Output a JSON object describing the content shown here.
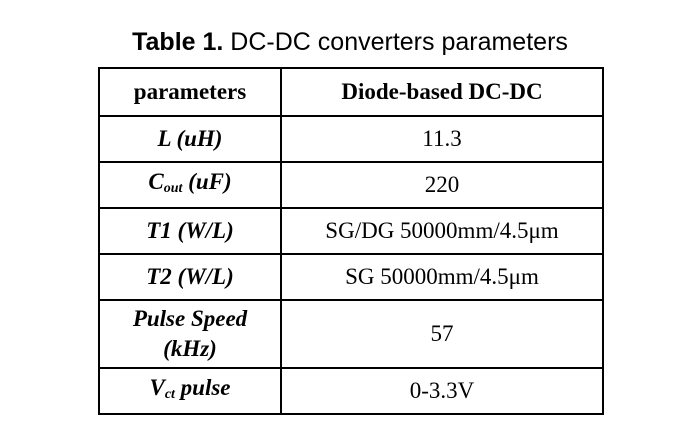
{
  "caption": {
    "label": "Table 1.",
    "text": " DC-DC converters parameters"
  },
  "table": {
    "header": [
      "parameters",
      "Diode-based DC-DC"
    ],
    "rows": [
      {
        "label": {
          "main": "L (uH)"
        },
        "value": "11.3"
      },
      {
        "label": {
          "main": "C",
          "sub": "out",
          "rest": " (uF)"
        },
        "value": "220"
      },
      {
        "label": {
          "main": "T1 (W/L)"
        },
        "value": "SG/DG 50000mm/4.5μm"
      },
      {
        "label": {
          "main": "T2 (W/L)"
        },
        "value": "SG 50000mm/4.5μm"
      },
      {
        "label": {
          "lines": [
            "Pulse Speed",
            "(kHz)"
          ]
        },
        "value": "57"
      },
      {
        "label": {
          "main": "V",
          "sub": "ct",
          "rest": " pulse"
        },
        "value": "0-3.3V"
      }
    ]
  }
}
